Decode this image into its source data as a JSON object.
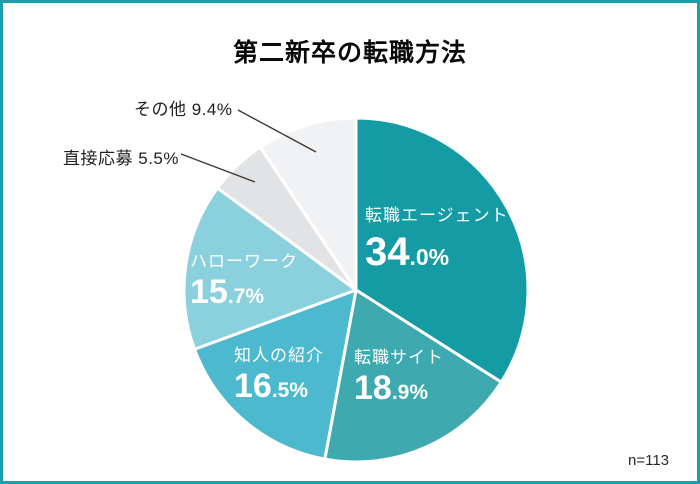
{
  "page": {
    "title": "第二新卒の転職方法",
    "frame_color": "#1C9FA8",
    "background": "#FFFFFF"
  },
  "chart_data": {
    "type": "pie",
    "title": "第二新卒の転職方法",
    "sample_note": "n=113",
    "start_angle_deg": 0,
    "direction": "clockwise",
    "legend_position": "none",
    "slices": [
      {
        "label": "転職エージェント",
        "value": 34.0,
        "pct_int": "34",
        "pct_frac": ".0%",
        "display": "34.0%",
        "color": "#149BA4",
        "label_placement": "inside"
      },
      {
        "label": "転職サイト",
        "value": 18.9,
        "pct_int": "18",
        "pct_frac": ".9%",
        "display": "18.9%",
        "color": "#3FA9B0",
        "label_placement": "inside"
      },
      {
        "label": "知人の紹介",
        "value": 16.5,
        "pct_int": "16",
        "pct_frac": ".5%",
        "display": "16.5%",
        "color": "#4CB9CE",
        "label_placement": "inside"
      },
      {
        "label": "ハローワーク",
        "value": 15.7,
        "pct_int": "15",
        "pct_frac": ".7%",
        "display": "15.7%",
        "color": "#8BD1DD",
        "label_placement": "inside"
      },
      {
        "label": "直接応募",
        "value": 5.5,
        "display": "5.5%",
        "color": "#E2E3E5",
        "label_placement": "outside"
      },
      {
        "label": "その他",
        "value": 9.4,
        "display": "9.4%",
        "color": "#F1F2F4",
        "label_placement": "outside"
      }
    ]
  }
}
